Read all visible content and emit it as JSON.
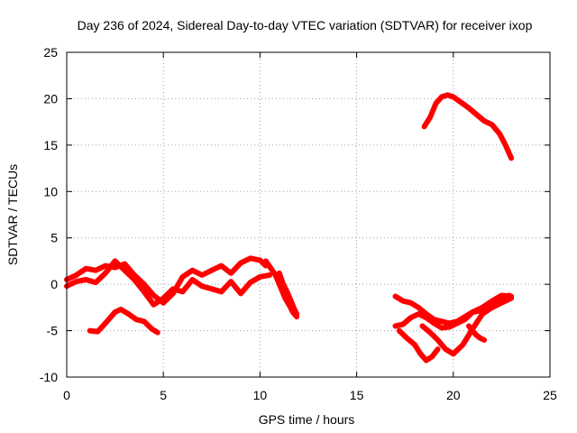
{
  "chart_data": {
    "type": "line",
    "title": "Day 236 of 2024, Sidereal Day-to-day VTEC variation (SDTVAR) for receiver ixop",
    "xlabel": "GPS time / hours",
    "ylabel": "SDTVAR / TECUs",
    "xlim": [
      0,
      25
    ],
    "ylim": [
      -10,
      25
    ],
    "xticks": [
      0,
      5,
      10,
      15,
      20,
      25
    ],
    "yticks": [
      -10,
      -5,
      0,
      5,
      10,
      15,
      20,
      25
    ],
    "grid": true,
    "color": "#ff0000",
    "series": [
      {
        "name": "segment-1",
        "x": [
          0,
          0.5,
          1.0,
          1.5,
          2.0,
          2.5,
          3.0,
          3.5,
          4.0,
          4.5,
          5.0,
          5.5,
          6.0,
          6.5,
          7.0,
          7.5,
          8.0,
          8.5,
          9.0,
          9.5,
          10.0,
          10.3
        ],
        "y": [
          0.5,
          1.0,
          1.7,
          1.5,
          2.0,
          1.8,
          2.2,
          1.0,
          0.0,
          -1.2,
          -2.0,
          -1.0,
          0.8,
          1.5,
          1.0,
          1.5,
          2.0,
          1.2,
          2.3,
          2.8,
          2.6,
          2.0
        ]
      },
      {
        "name": "segment-2",
        "x": [
          0,
          0.5,
          1.0,
          1.5,
          2.0,
          2.5,
          3.0,
          3.5,
          4.0,
          4.5,
          5.0,
          5.5,
          6.0,
          6.5,
          7.0,
          7.5,
          8.0,
          8.5,
          9.0,
          9.5,
          10.0,
          10.5
        ],
        "y": [
          -0.2,
          0.3,
          0.5,
          0.2,
          1.2,
          2.5,
          1.5,
          0.5,
          -0.8,
          -2.2,
          -1.5,
          -0.5,
          -0.8,
          0.5,
          -0.2,
          -0.5,
          -0.8,
          0.3,
          -1.0,
          0.2,
          0.8,
          1.0
        ]
      },
      {
        "name": "segment-3",
        "x": [
          1.2,
          1.6,
          2.0,
          2.5,
          2.8,
          3.2,
          3.6,
          4.0,
          4.4,
          4.7
        ],
        "y": [
          -5.0,
          -5.1,
          -4.2,
          -3.0,
          -2.7,
          -3.2,
          -3.8,
          -4.0,
          -4.8,
          -5.2
        ]
      },
      {
        "name": "segment-4",
        "x": [
          10.3,
          10.8,
          11.1,
          11.3,
          11.5,
          11.7,
          11.9
        ],
        "y": [
          2.5,
          1.0,
          -0.5,
          -1.5,
          -2.2,
          -3.0,
          -3.5
        ]
      },
      {
        "name": "segment-5",
        "x": [
          11.0,
          11.2,
          11.4,
          11.6,
          11.8,
          11.9
        ],
        "y": [
          1.2,
          0.0,
          -0.8,
          -1.8,
          -2.8,
          -3.2
        ]
      },
      {
        "name": "segment-6",
        "x": [
          18.5,
          18.8,
          19.1,
          19.4,
          19.7,
          20.0,
          20.4,
          20.8,
          21.2,
          21.6,
          22.0,
          22.4,
          22.7,
          23.0
        ],
        "y": [
          17.0,
          18.0,
          19.5,
          20.2,
          20.4,
          20.2,
          19.6,
          19.0,
          18.3,
          17.6,
          17.2,
          16.2,
          15.0,
          13.6
        ]
      },
      {
        "name": "segment-7",
        "x": [
          17.0,
          17.4,
          17.8,
          18.2,
          18.6,
          19.0,
          19.4,
          19.8,
          20.2,
          20.6,
          21.0,
          21.5,
          22.0,
          22.5,
          23.0
        ],
        "y": [
          -1.3,
          -1.8,
          -2.0,
          -2.5,
          -3.2,
          -3.8,
          -4.0,
          -4.2,
          -4.0,
          -3.5,
          -3.0,
          -2.8,
          -2.5,
          -2.0,
          -1.5
        ]
      },
      {
        "name": "segment-8",
        "x": [
          17.0,
          17.4,
          17.8,
          18.2,
          18.6,
          19.0,
          19.4,
          19.8,
          20.2,
          20.6,
          21.0,
          21.5,
          22.0,
          22.5,
          23.0
        ],
        "y": [
          -4.5,
          -4.3,
          -3.6,
          -3.2,
          -3.6,
          -4.2,
          -4.7,
          -4.6,
          -4.2,
          -3.8,
          -3.0,
          -2.5,
          -1.8,
          -1.2,
          -1.3
        ]
      },
      {
        "name": "segment-9",
        "x": [
          17.2,
          17.6,
          18.0,
          18.3,
          18.6,
          18.9,
          19.2
        ],
        "y": [
          -5.0,
          -5.8,
          -6.5,
          -7.5,
          -8.2,
          -7.8,
          -7.0
        ]
      },
      {
        "name": "segment-10",
        "x": [
          18.4,
          18.8,
          19.2,
          19.6,
          20.0,
          20.5,
          21.0,
          21.5,
          22.0,
          22.5,
          22.9
        ],
        "y": [
          -4.5,
          -5.2,
          -6.0,
          -7.0,
          -7.5,
          -6.5,
          -4.8,
          -3.2,
          -2.5,
          -1.5,
          -1.2
        ]
      },
      {
        "name": "segment-11",
        "x": [
          20.8,
          21.0,
          21.2,
          21.4,
          21.6
        ],
        "y": [
          -4.5,
          -5.0,
          -5.5,
          -5.8,
          -6.0
        ]
      }
    ]
  }
}
